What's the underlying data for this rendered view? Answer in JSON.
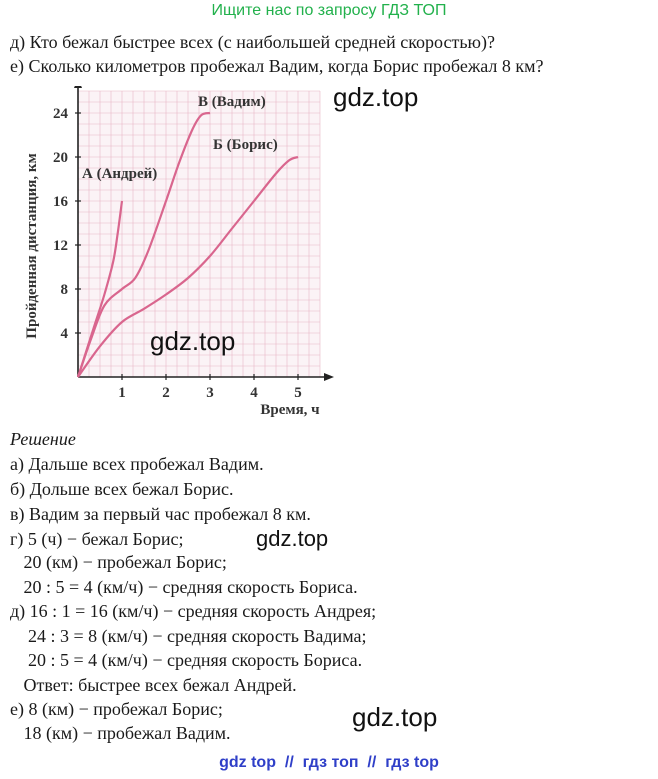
{
  "banner": "Ищите нас по запросу ГДЗ ТОП",
  "questions": {
    "d": "д) Кто бежал быстрее всех (с наибольшей средней скоростью)?",
    "e": "е) Сколько километров пробежал Вадим, когда Борис пробежал 8 км?"
  },
  "watermarks": [
    "gdz.top",
    "gdz.top",
    "gdz.top",
    "gdz.top"
  ],
  "chart_data": {
    "type": "line",
    "xlabel": "Время, ч",
    "ylabel": "Пройденная дистанция, км",
    "xlim": [
      0,
      5.5
    ],
    "ylim": [
      0,
      26
    ],
    "x_ticks": [
      1,
      2,
      3,
      4,
      5
    ],
    "y_ticks": [
      4,
      8,
      12,
      16,
      20,
      24
    ],
    "grid": true,
    "series": [
      {
        "name": "А (Андрей)",
        "points": [
          [
            0,
            0
          ],
          [
            0.2,
            2.5
          ],
          [
            0.4,
            5
          ],
          [
            0.6,
            7.5
          ],
          [
            0.8,
            10.5
          ],
          [
            0.9,
            13
          ],
          [
            1,
            16
          ]
        ]
      },
      {
        "name": "В (Вадим)",
        "points": [
          [
            0,
            0
          ],
          [
            0.3,
            3.5
          ],
          [
            0.6,
            6.5
          ],
          [
            1,
            8
          ],
          [
            1.3,
            9
          ],
          [
            1.6,
            11.5
          ],
          [
            2,
            16
          ],
          [
            2.3,
            19.5
          ],
          [
            2.6,
            22.5
          ],
          [
            2.8,
            23.8
          ],
          [
            3,
            24
          ]
        ]
      },
      {
        "name": "Б (Борис)",
        "points": [
          [
            0,
            0
          ],
          [
            0.5,
            2.8
          ],
          [
            1,
            5
          ],
          [
            1.5,
            6.2
          ],
          [
            2,
            7.5
          ],
          [
            2.5,
            9
          ],
          [
            3,
            11
          ],
          [
            3.5,
            13.5
          ],
          [
            4,
            16
          ],
          [
            4.5,
            18.5
          ],
          [
            4.8,
            19.7
          ],
          [
            5,
            20
          ]
        ]
      }
    ]
  },
  "solution": {
    "title": "Решение",
    "lines": [
      "а) Дальше всех пробежал Вадим.",
      "б) Дольше всех бежал Борис.",
      "в) Вадим за первый час пробежал 8 км.",
      "г) 5 (ч) − бежал Борис;",
      "   20 (км) − пробежал Борис;",
      "   20 : 5 = 4 (км/ч) − средняя скорость Бориса.",
      "д) 16 : 1 = 16 (км/ч) − средняя скорость Андрея;",
      "    24 : 3 = 8 (км/ч) − средняя скорость Вадима;",
      "    20 : 5 = 4 (км/ч) − средняя скорость Бориса.",
      "   Ответ: быстрее всех бежал Андрей.",
      "е) 8 (км) − пробежал Борис;",
      "   18 (км) − пробежал Вадим."
    ]
  },
  "footer": [
    "gdz top",
    "//",
    "гдз топ",
    "//",
    "гдз top"
  ]
}
